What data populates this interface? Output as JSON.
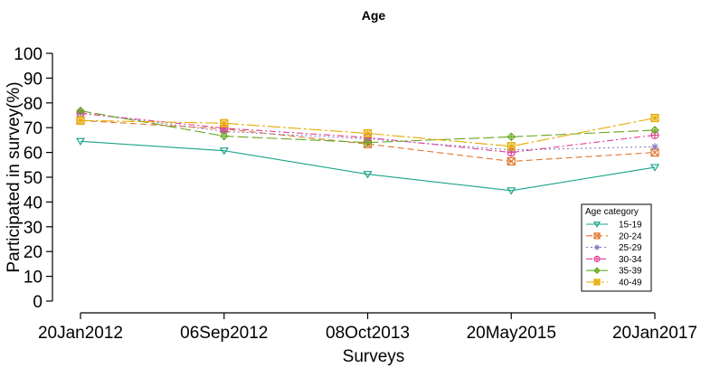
{
  "chart_data": {
    "type": "line",
    "title": "Age",
    "xlabel": "Surveys",
    "ylabel": "Participated in survey(%)",
    "categories": [
      "20Jan2012",
      "06Sep2012",
      "08Oct2013",
      "20May2015",
      "20Jan2017"
    ],
    "yticks": [
      "0",
      "10",
      "20",
      "30",
      "40",
      "50",
      "60",
      "70",
      "80",
      "90",
      "100"
    ],
    "ylim": [
      0,
      100
    ],
    "grid": false,
    "legend": {
      "title": "Age category",
      "position": "right"
    },
    "series": [
      {
        "name": "15-19",
        "values": [
          64.5,
          60.7,
          51.2,
          44.6,
          54.0
        ],
        "color": "#1ba38a",
        "dash": "",
        "marker": "triangle-down"
      },
      {
        "name": "20-24",
        "values": [
          72.9,
          69.5,
          63.4,
          56.4,
          60.0
        ],
        "color": "#e0742a",
        "dash": "7,4",
        "marker": "square-x"
      },
      {
        "name": "25-29",
        "values": [
          76.0,
          68.5,
          65.5,
          61.0,
          62.3
        ],
        "color": "#8b7fc2",
        "dash": "2,3",
        "marker": "asterisk"
      },
      {
        "name": "30-34",
        "values": [
          75.8,
          69.8,
          66.0,
          60.0,
          67.0
        ],
        "color": "#e23f9a",
        "dash": "7,3,2,3",
        "marker": "circle-plus"
      },
      {
        "name": "35-39",
        "values": [
          76.8,
          66.6,
          64.0,
          66.3,
          69.0
        ],
        "color": "#66a61e",
        "dash": "12,4",
        "marker": "diamond-plus"
      },
      {
        "name": "40-49",
        "values": [
          72.9,
          71.8,
          67.7,
          62.5,
          73.9
        ],
        "color": "#e6ab02",
        "dash": "14,3,3,3",
        "marker": "square-star"
      }
    ]
  }
}
